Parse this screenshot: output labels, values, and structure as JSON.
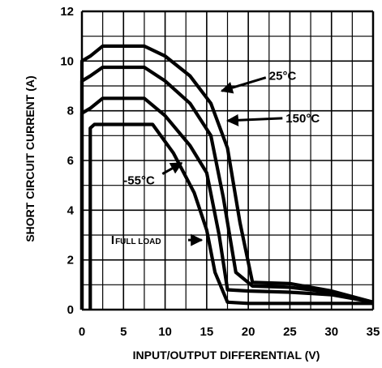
{
  "chart_data": {
    "type": "line",
    "xlabel": "INPUT/OUTPUT DIFFERENTIAL (V)",
    "ylabel": "SHORT CIRCUIT CURRENT (A)",
    "xlim": [
      0,
      35
    ],
    "ylim": [
      0,
      12
    ],
    "xticks": [
      "0",
      "5",
      "10",
      "15",
      "20",
      "25",
      "30",
      "35"
    ],
    "yticks": [
      "0",
      "2",
      "4",
      "6",
      "8",
      "10",
      "12"
    ],
    "grid": true,
    "series": [
      {
        "name": "25°C",
        "x": [
          0,
          0,
          1,
          2.5,
          7.5,
          10,
          13,
          15.5,
          17.5,
          19,
          20.5,
          25,
          30,
          35
        ],
        "y": [
          0,
          10.0,
          10.2,
          10.6,
          10.6,
          10.2,
          9.4,
          8.3,
          6.5,
          3.5,
          1.1,
          1.05,
          0.75,
          0.3
        ]
      },
      {
        "name": "150°C",
        "x": [
          0,
          0,
          1,
          2.5,
          7.5,
          10,
          13,
          15.5,
          17,
          18.5,
          20.5,
          25,
          30,
          35
        ],
        "y": [
          0,
          9.2,
          9.4,
          9.75,
          9.75,
          9.2,
          8.3,
          7.0,
          4.5,
          1.5,
          0.95,
          0.9,
          0.7,
          0.3
        ]
      },
      {
        "name": "-55°C",
        "x": [
          0,
          0,
          1,
          2.5,
          7.5,
          10,
          13,
          15,
          16.5,
          17.5,
          20,
          25,
          30,
          35
        ],
        "y": [
          0,
          7.9,
          8.1,
          8.5,
          8.5,
          7.8,
          6.6,
          5.5,
          3.0,
          0.8,
          0.75,
          0.7,
          0.6,
          0.3
        ]
      },
      {
        "name": "IFULL LOAD",
        "x": [
          1,
          1,
          1.5,
          8.5,
          11,
          13.5,
          15,
          16,
          17.5,
          20,
          25,
          30,
          35
        ],
        "y": [
          0,
          7.3,
          7.45,
          7.45,
          6.3,
          4.7,
          3.2,
          1.5,
          0.3,
          0.25,
          0.25,
          0.25,
          0.25
        ]
      }
    ],
    "annotations": [
      {
        "id": "a25",
        "text": "25°C",
        "x": 22.5,
        "y": 9.4,
        "arrow_to": [
          16.8,
          8.8
        ]
      },
      {
        "id": "a150",
        "text": "150°C",
        "x": 24.5,
        "y": 7.7,
        "arrow_to": [
          17.5,
          7.6
        ]
      },
      {
        "id": "am55",
        "text": "-55°C",
        "x": 5.0,
        "y": 5.2,
        "arrow_to": [
          12.0,
          5.9
        ]
      },
      {
        "id": "aifl",
        "text": "I",
        "sub": "FULL LOAD",
        "x": 3.5,
        "y": 2.8,
        "arrow_to": [
          14.4,
          2.8
        ]
      }
    ]
  }
}
